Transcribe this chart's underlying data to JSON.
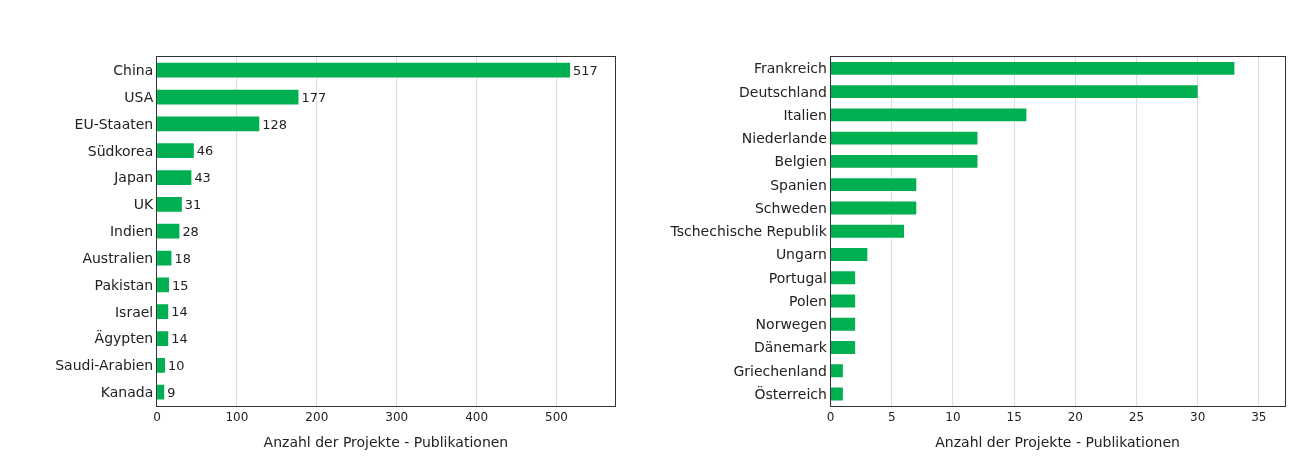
{
  "chart_data": [
    {
      "type": "bar",
      "orientation": "horizontal",
      "categories": [
        "China",
        "USA",
        "EU-Staaten",
        "Südkorea",
        "Japan",
        "UK",
        "Indien",
        "Australien",
        "Pakistan",
        "Israel",
        "Ägypten",
        "Saudi-Arabien",
        "Kanada"
      ],
      "values": [
        517,
        177,
        128,
        46,
        43,
        31,
        28,
        18,
        15,
        14,
        14,
        10,
        9
      ],
      "color": "#00b050",
      "xlabel": "Anzahl der Projekte - Publikationen",
      "xlim": [
        0,
        573
      ],
      "xticks": [
        0,
        100,
        200,
        300,
        400,
        500
      ],
      "grid": "x",
      "legend": false,
      "data_labels": true
    },
    {
      "type": "bar",
      "orientation": "horizontal",
      "categories": [
        "Frankreich",
        "Deutschland",
        "Italien",
        "Niederlande",
        "Belgien",
        "Spanien",
        "Schweden",
        "Tschechische Republik",
        "Ungarn",
        "Portugal",
        "Polen",
        "Norwegen",
        "Dänemark",
        "Griechenland",
        "Österreich"
      ],
      "values": [
        33,
        30,
        16,
        12,
        12,
        7,
        7,
        6,
        3,
        2,
        2,
        2,
        2,
        1,
        1
      ],
      "color": "#00b050",
      "xlabel": "Anzahl der Projekte - Publikationen",
      "xlim": [
        0,
        37.1
      ],
      "xticks": [
        0,
        5,
        10,
        15,
        20,
        25,
        30,
        35
      ],
      "grid": "x",
      "legend": false
    }
  ]
}
